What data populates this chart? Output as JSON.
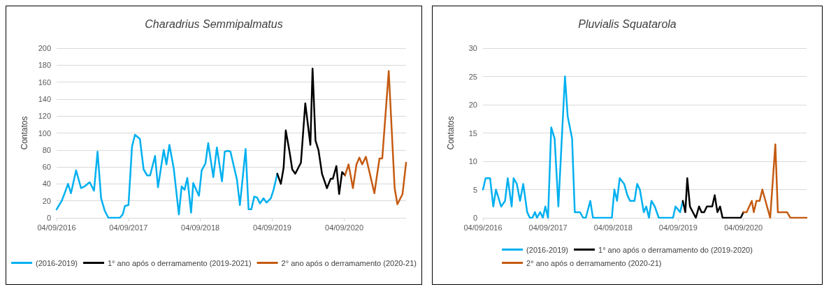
{
  "chart_data": [
    {
      "type": "line",
      "title": "Charadrius Semmipalmatus",
      "ylabel": "Contatos",
      "xlim": [
        "2016-09-04",
        "2021-07-15"
      ],
      "xticks": [
        {
          "value": "2016-09-04",
          "label": "04/09/2016"
        },
        {
          "value": "2017-09-04",
          "label": "04/09/2017"
        },
        {
          "value": "2018-09-04",
          "label": "04/09/2018"
        },
        {
          "value": "2019-09-04",
          "label": "04/09/2019"
        },
        {
          "value": "2020-09-04",
          "label": "04/09/2020"
        }
      ],
      "ylim": [
        0,
        200
      ],
      "yticks": [
        0,
        20,
        40,
        60,
        80,
        100,
        120,
        140,
        160,
        180,
        200
      ],
      "grid": "y",
      "legend": "bottom",
      "marker": "none",
      "line_style": "solid",
      "series": [
        {
          "name": "(2016-2019)",
          "color": "#00b0f0",
          "x": [
            "2016-09-04",
            "2016-09-30",
            "2016-10-18",
            "2016-11-01",
            "2016-11-16",
            "2016-12-12",
            "2017-01-06",
            "2017-01-24",
            "2017-02-19",
            "2017-03-13",
            "2017-03-31",
            "2017-04-18",
            "2017-05-07",
            "2017-05-25",
            "2017-07-22",
            "2017-08-06",
            "2017-08-17",
            "2017-09-04",
            "2017-09-22",
            "2017-10-07",
            "2017-11-01",
            "2017-11-20",
            "2017-12-08",
            "2017-12-23",
            "2018-01-17",
            "2018-02-01",
            "2018-03-02",
            "2018-03-16",
            "2018-03-31",
            "2018-04-22",
            "2018-05-18",
            "2018-06-01",
            "2018-06-16",
            "2018-06-30",
            "2018-07-19",
            "2018-07-30",
            "2018-08-28",
            "2018-09-11",
            "2018-09-30",
            "2018-10-14",
            "2018-11-09",
            "2018-11-27",
            "2018-12-23",
            "2019-01-06",
            "2019-01-21",
            "2019-02-04",
            "2019-03-09",
            "2019-03-24",
            "2019-04-22",
            "2019-05-07",
            "2019-05-21",
            "2019-06-05",
            "2019-06-19",
            "2019-07-04",
            "2019-07-22",
            "2019-08-06",
            "2019-08-28",
            "2019-09-11",
            "2019-09-30"
          ],
          "values": [
            10,
            20,
            31,
            40,
            29,
            56,
            35,
            37,
            42,
            32,
            78,
            23,
            8,
            0,
            0,
            4,
            14,
            15,
            84,
            98,
            93,
            57,
            50,
            50,
            73,
            36,
            80,
            63,
            86,
            58,
            4,
            37,
            33,
            47,
            6,
            41,
            26,
            56,
            64,
            88,
            48,
            83,
            43,
            78,
            79,
            78,
            45,
            15,
            81,
            10,
            10,
            25,
            24,
            17,
            23,
            18,
            23,
            33,
            52
          ]
        },
        {
          "name": "1° ano após o derramamento (2019-2021)",
          "color": "#000000",
          "x": [
            "2019-09-30",
            "2019-10-18",
            "2019-11-01",
            "2019-11-12",
            "2019-12-01",
            "2019-12-15",
            "2019-12-30",
            "2020-01-28",
            "2020-02-19",
            "2020-03-16",
            "2020-03-27",
            "2020-04-11",
            "2020-04-26",
            "2020-05-14",
            "2020-06-08",
            "2020-06-27",
            "2020-07-08",
            "2020-07-26",
            "2020-08-09",
            "2020-08-24",
            "2020-09-08"
          ],
          "values": [
            52,
            40,
            59,
            103,
            78,
            57,
            52,
            65,
            135,
            86,
            176,
            91,
            80,
            52,
            35,
            46,
            46,
            61,
            28,
            54,
            50
          ]
        },
        {
          "name": "2° ano após o derramamento (2020-21)",
          "color": "#c55a11",
          "x": [
            "2020-09-08",
            "2020-09-26",
            "2020-10-18",
            "2020-11-05",
            "2020-11-20",
            "2020-12-04",
            "2020-12-23",
            "2021-02-04",
            "2021-03-02",
            "2021-03-16",
            "2021-04-18",
            "2021-05-18",
            "2021-06-01",
            "2021-06-27",
            "2021-07-15"
          ],
          "values": [
            50,
            63,
            35,
            63,
            71,
            63,
            72,
            29,
            70,
            70,
            173,
            35,
            16,
            28,
            65
          ]
        }
      ]
    },
    {
      "type": "line",
      "title": "Pluvialis Squatarola",
      "ylabel": "Contatos",
      "xlim": [
        "2016-09-04",
        "2021-08-24"
      ],
      "xticks": [
        {
          "value": "2016-09-04",
          "label": "04/09/2016"
        },
        {
          "value": "2017-09-04",
          "label": "04/09/2017"
        },
        {
          "value": "2018-09-04",
          "label": "04/09/2018"
        },
        {
          "value": "2019-09-04",
          "label": "04/09/2019"
        },
        {
          "value": "2020-09-04",
          "label": "04/09/2020"
        }
      ],
      "ylim": [
        0,
        30
      ],
      "yticks": [
        0,
        5,
        10,
        15,
        20,
        25,
        30
      ],
      "grid": "y",
      "legend": "bottom",
      "marker": "none",
      "line_style": "solid",
      "series": [
        {
          "name": "(2016-2019)",
          "color": "#00b0f0",
          "x": [
            "2016-09-04",
            "2016-09-19",
            "2016-10-14",
            "2016-11-01",
            "2016-11-16",
            "2016-12-15",
            "2017-01-06",
            "2017-01-21",
            "2017-02-12",
            "2017-02-23",
            "2017-03-13",
            "2017-03-31",
            "2017-04-18",
            "2017-05-10",
            "2017-05-25",
            "2017-06-08",
            "2017-06-23",
            "2017-07-04",
            "2017-07-22",
            "2017-08-06",
            "2017-08-20",
            "2017-09-04",
            "2017-09-22",
            "2017-10-11",
            "2017-11-01",
            "2017-12-08",
            "2017-12-23",
            "2018-01-17",
            "2018-02-01",
            "2018-03-02",
            "2018-03-20",
            "2018-04-04",
            "2018-04-29",
            "2018-05-14",
            "2018-08-28",
            "2018-09-11",
            "2018-09-26",
            "2018-10-11",
            "2018-11-05",
            "2018-11-23",
            "2018-12-08",
            "2019-01-02",
            "2019-01-17",
            "2019-02-01",
            "2019-02-23",
            "2019-03-09",
            "2019-03-24",
            "2019-04-07",
            "2019-04-26",
            "2019-05-18",
            "2019-08-06",
            "2019-08-20",
            "2019-09-15",
            "2019-09-30"
          ],
          "values": [
            5,
            7,
            7,
            2,
            5,
            2,
            3,
            7,
            2,
            7,
            6,
            3,
            6,
            1,
            0,
            0,
            1,
            0,
            1,
            0,
            2,
            0,
            16,
            14,
            2,
            25,
            18,
            14,
            1,
            1,
            0,
            0,
            3,
            0,
            0,
            5,
            3,
            7,
            6,
            4,
            3,
            3,
            6,
            5,
            1,
            2,
            0,
            3,
            2,
            0,
            0,
            2,
            1,
            3
          ]
        },
        {
          "name": "1° ano após o derramamento do (2019-2020)",
          "color": "#000000",
          "x": [
            "2019-09-30",
            "2019-10-14",
            "2019-10-25",
            "2019-11-09",
            "2019-12-12",
            "2019-12-30",
            "2020-01-13",
            "2020-01-28",
            "2020-02-12",
            "2020-03-13",
            "2020-03-27",
            "2020-04-11",
            "2020-04-26",
            "2020-05-10",
            "2020-08-20",
            "2020-09-04"
          ],
          "values": [
            3,
            1,
            7,
            2,
            0,
            2,
            1,
            1,
            2,
            2,
            4,
            1,
            2,
            0,
            0,
            1
          ]
        },
        {
          "name": "2° ano após o derramamento (2020-21)",
          "color": "#c55a11",
          "x": [
            "2020-09-04",
            "2020-09-22",
            "2020-10-21",
            "2020-11-01",
            "2020-11-16",
            "2020-12-04",
            "2020-12-19",
            "2021-02-01",
            "2021-03-02",
            "2021-03-16",
            "2021-05-07",
            "2021-05-25",
            "2021-08-24"
          ],
          "values": [
            1,
            1,
            3,
            1,
            3,
            3,
            5,
            0,
            13,
            1,
            1,
            0,
            0
          ]
        }
      ]
    }
  ]
}
